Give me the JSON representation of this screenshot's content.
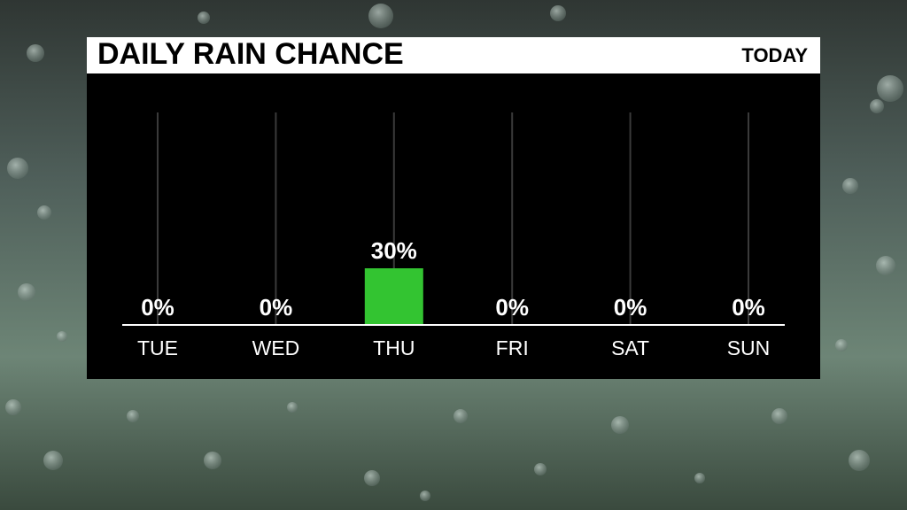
{
  "chart_data": {
    "type": "bar",
    "title": "DAILY RAIN CHANCE",
    "subtitle": "TODAY",
    "categories": [
      "TUE",
      "WED",
      "THU",
      "FRI",
      "SAT",
      "SUN"
    ],
    "values": [
      0,
      0,
      30,
      0,
      0,
      0
    ],
    "value_labels": [
      "0%",
      "0%",
      "30%",
      "0%",
      "0%",
      "0%"
    ],
    "color": "#33c431"
  }
}
